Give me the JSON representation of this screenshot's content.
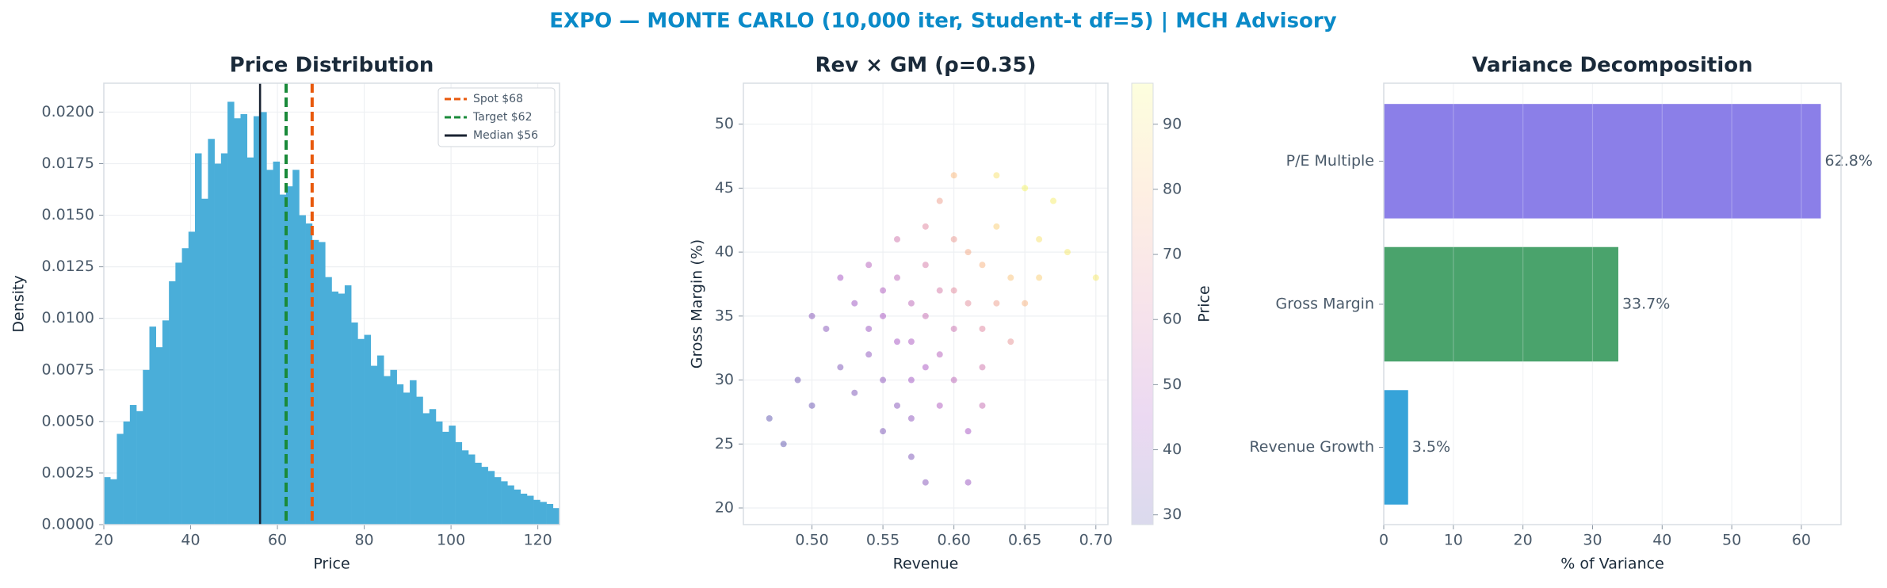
{
  "title": "EXPO — MONTE CARLO (10,000 iter, Student-t df=5) | MCH Advisory",
  "chart_data": [
    {
      "type": "histogram",
      "title": "Price Distribution",
      "x_label": "Price",
      "y_label": "Density",
      "color": "#4aaed9",
      "bins": [
        20,
        21.5,
        23,
        24.5,
        26,
        27.5,
        29,
        30.5,
        32,
        33.5,
        35,
        36.5,
        38,
        39.5,
        41,
        42.5,
        44,
        45.5,
        47,
        48.5,
        50,
        51.5,
        53,
        54.5,
        56,
        57.5,
        59,
        60.5,
        62,
        63.5,
        65,
        66.5,
        68,
        69.5,
        71,
        72.5,
        74,
        75.5,
        77,
        78.5,
        80,
        81.5,
        83,
        84.5,
        86,
        87.5,
        89,
        90.5,
        92,
        93.5,
        95,
        96.5,
        98,
        99.5,
        101,
        102.5,
        104,
        105.5,
        107,
        108.5,
        110,
        111.5,
        113,
        114.5,
        116,
        117.5,
        119,
        120.5,
        122,
        123.5,
        125
      ],
      "values": [
        0.0023,
        0.0022,
        0.0044,
        0.005,
        0.0058,
        0.0055,
        0.0075,
        0.0096,
        0.0086,
        0.0099,
        0.0118,
        0.0127,
        0.0134,
        0.0142,
        0.018,
        0.0158,
        0.0187,
        0.0175,
        0.018,
        0.0205,
        0.0197,
        0.0199,
        0.0178,
        0.0198,
        0.02,
        0.0172,
        0.0176,
        0.016,
        0.0164,
        0.0172,
        0.015,
        0.0146,
        0.0138,
        0.0137,
        0.012,
        0.0113,
        0.0112,
        0.0116,
        0.0098,
        0.009,
        0.0092,
        0.0077,
        0.0082,
        0.0072,
        0.0075,
        0.0068,
        0.0064,
        0.007,
        0.0062,
        0.0054,
        0.0056,
        0.005,
        0.0045,
        0.0048,
        0.004,
        0.0036,
        0.0034,
        0.003,
        0.0028,
        0.0026,
        0.0023,
        0.0021,
        0.0019,
        0.0017,
        0.0015,
        0.0014,
        0.0012,
        0.0011,
        0.001,
        0.0008
      ],
      "xlim": [
        20,
        125
      ],
      "xticks": [
        20,
        40,
        60,
        80,
        100,
        120
      ],
      "ylim": [
        0,
        0.0214
      ],
      "yticks": [
        {
          "value": 0,
          "label": "0.0000"
        },
        {
          "value": 0.0025,
          "label": "0.0025"
        },
        {
          "value": 0.005,
          "label": "0.0050"
        },
        {
          "value": 0.0075,
          "label": "0.0075"
        },
        {
          "value": 0.01,
          "label": "0.0100"
        },
        {
          "value": 0.0125,
          "label": "0.0125"
        },
        {
          "value": 0.015,
          "label": "0.0150"
        },
        {
          "value": 0.0175,
          "label": "0.0175"
        },
        {
          "value": 0.02,
          "label": "0.0200"
        }
      ],
      "vlines": [
        {
          "name": "Spot $68",
          "x": 68,
          "color": "#e8590c",
          "dashed": true
        },
        {
          "name": "Target $62",
          "x": 62,
          "color": "#1a8a3a",
          "dashed": true
        },
        {
          "name": "Median $56",
          "x": 56,
          "color": "#1a2332",
          "dashed": false
        }
      ],
      "grid": true,
      "legend": "upper right"
    },
    {
      "type": "scatter",
      "title": "Rev × GM (ρ=0.35)",
      "x_label": "Revenue",
      "y_label": "Gross Margin (%)",
      "x": [
        0.58,
        0.56,
        0.6,
        0.62,
        0.55,
        0.57,
        0.59,
        0.61,
        0.63,
        0.54,
        0.52,
        0.5,
        0.57,
        0.6,
        0.64,
        0.66,
        0.58,
        0.55,
        0.53,
        0.56,
        0.59,
        0.62,
        0.65,
        0.61,
        0.57,
        0.51,
        0.49,
        0.48,
        0.6,
        0.63,
        0.67,
        0.58,
        0.56,
        0.54,
        0.62,
        0.59,
        0.57,
        0.55,
        0.6,
        0.64,
        0.53,
        0.58,
        0.61,
        0.52,
        0.5,
        0.66,
        0.68,
        0.63,
        0.56,
        0.58,
        0.6,
        0.55,
        0.62,
        0.59,
        0.57,
        0.61,
        0.54,
        0.65,
        0.47,
        0.7
      ],
      "values": [
        35,
        33,
        37,
        39,
        30,
        36,
        32,
        40,
        42,
        34,
        31,
        28,
        27,
        30,
        38,
        41,
        39,
        37,
        36,
        28,
        44,
        34,
        36,
        26,
        24,
        34,
        30,
        25,
        46,
        46,
        44,
        31,
        38,
        32,
        31,
        37,
        33,
        35,
        34,
        33,
        29,
        22,
        22,
        38,
        35,
        38,
        40,
        36,
        41,
        42,
        41,
        26,
        28,
        28,
        30,
        36,
        39,
        45,
        27,
        38
      ],
      "color_values": [
        55,
        45,
        65,
        78,
        40,
        52,
        50,
        75,
        85,
        42,
        36,
        32,
        40,
        52,
        82,
        90,
        60,
        48,
        43,
        38,
        72,
        64,
        78,
        45,
        36,
        38,
        33,
        30,
        80,
        90,
        93,
        46,
        52,
        40,
        58,
        60,
        47,
        46,
        56,
        68,
        36,
        38,
        42,
        45,
        38,
        85,
        92,
        72,
        58,
        64,
        70,
        36,
        55,
        48,
        44,
        66,
        50,
        95,
        30,
        92
      ],
      "cmap": "plasma",
      "colorbar_label": "Price",
      "clim": [
        28.5,
        96.3
      ],
      "cticks": [
        30,
        40,
        50,
        60,
        70,
        80,
        90
      ],
      "xlim": [
        0.4517,
        0.7085
      ],
      "xticks": [
        {
          "value": 0.5,
          "label": "0.50"
        },
        {
          "value": 0.55,
          "label": "0.55"
        },
        {
          "value": 0.6,
          "label": "0.60"
        },
        {
          "value": 0.65,
          "label": "0.65"
        },
        {
          "value": 0.7,
          "label": "0.70"
        }
      ],
      "ylim": [
        18.7,
        53.2
      ],
      "yticks": [
        20,
        25,
        30,
        35,
        40,
        45,
        50
      ],
      "grid": true
    },
    {
      "type": "barh",
      "title": "Variance Decomposition",
      "x_label": "% of Variance",
      "categories": [
        "Revenue Growth",
        "Gross Margin",
        "P/E Multiple"
      ],
      "values": [
        3.5,
        33.7,
        62.8
      ],
      "value_labels": [
        "3.5%",
        "33.7%",
        "62.8%"
      ],
      "colors": [
        "#36a3d9",
        "#4aa36c",
        "#8b7fe8"
      ],
      "xlim": [
        0,
        65.7
      ],
      "xticks": [
        0,
        10,
        20,
        30,
        40,
        50,
        60
      ],
      "grid": true
    }
  ]
}
